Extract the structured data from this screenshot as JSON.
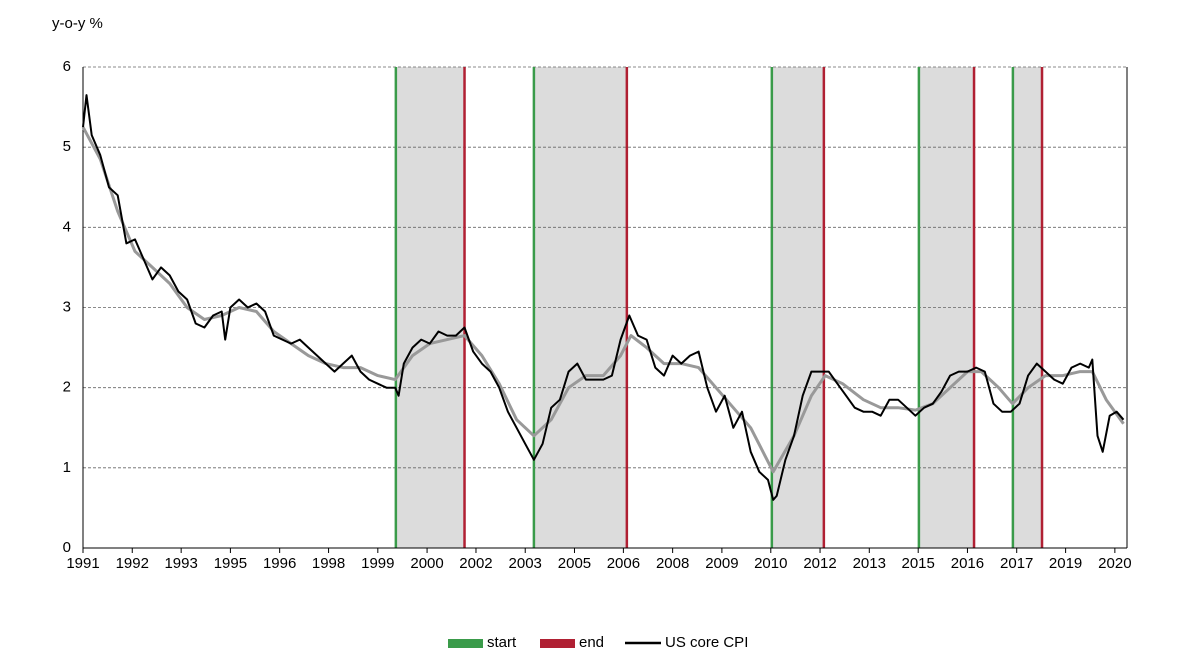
{
  "chart_data": {
    "type": "line",
    "y_axis_label": "y-o-y %",
    "xlim": [
      1991,
      2021.1
    ],
    "xticks": [
      1991,
      {
        "value": 1992.42,
        "label": "1992"
      },
      {
        "value": 1993.83,
        "label": "1993"
      },
      {
        "value": 1995.25,
        "label": "1995"
      },
      {
        "value": 1996.67,
        "label": "1996"
      },
      {
        "value": 1998.08,
        "label": "1998"
      },
      {
        "value": 1999.5,
        "label": "1999"
      },
      {
        "value": 2000.92,
        "label": "2000"
      },
      {
        "value": 2002.33,
        "label": "2002"
      },
      {
        "value": 2003.75,
        "label": "2003"
      },
      {
        "value": 2005.17,
        "label": "2005"
      },
      {
        "value": 2006.58,
        "label": "2006"
      },
      2008,
      {
        "value": 2009.42,
        "label": "2009"
      },
      {
        "value": 2010.83,
        "label": "2010"
      },
      {
        "value": 2012.25,
        "label": "2012"
      },
      {
        "value": 2013.67,
        "label": "2013"
      },
      {
        "value": 2015.08,
        "label": "2015"
      },
      {
        "value": 2016.5,
        "label": "2016"
      },
      {
        "value": 2017.92,
        "label": "2017"
      },
      {
        "value": 2019.33,
        "label": "2019"
      },
      {
        "value": 2020.75,
        "label": "2020"
      }
    ],
    "ylim": [
      0,
      6
    ],
    "yticks": [
      0,
      1,
      2,
      3,
      4,
      5,
      6
    ],
    "grid": true,
    "band_color": "#dcdcdc",
    "start_lines": {
      "name": "start",
      "color": "#3a9b4a",
      "x": [
        2000.02,
        2004.0,
        2010.86,
        2015.1,
        2017.81
      ]
    },
    "end_lines": {
      "name": "end",
      "color": "#b02033",
      "x": [
        2002.0,
        2006.68,
        2012.36,
        2016.69,
        2018.65
      ]
    },
    "series": [
      {
        "color": "#999999",
        "x": [
          1991.0,
          1991.5,
          1992.0,
          1992.5,
          1993.0,
          1993.5,
          1994.0,
          1994.5,
          1995.0,
          1995.5,
          1996.0,
          1996.5,
          1997.0,
          1997.5,
          1998.0,
          1998.5,
          1999.0,
          1999.5,
          2000.0,
          2000.5,
          2001.0,
          2001.5,
          2002.0,
          2002.5,
          2003.0,
          2003.5,
          2004.0,
          2004.5,
          2005.0,
          2005.5,
          2006.0,
          2006.5,
          2006.8,
          2007.25,
          2007.75,
          2008.25,
          2008.75,
          2009.25,
          2009.75,
          2010.25,
          2010.9,
          2011.5,
          2012.0,
          2012.4,
          2012.9,
          2013.5,
          2014.0,
          2014.5,
          2015.0,
          2015.5,
          2016.0,
          2016.5,
          2016.9,
          2017.4,
          2017.8,
          2018.25,
          2018.75,
          2019.25,
          2019.75,
          2020.1,
          2020.5,
          2021.0
        ],
        "values": [
          5.25,
          4.85,
          4.2,
          3.7,
          3.5,
          3.3,
          3.0,
          2.85,
          2.9,
          3.0,
          2.95,
          2.7,
          2.55,
          2.4,
          2.3,
          2.25,
          2.25,
          2.15,
          2.1,
          2.4,
          2.55,
          2.6,
          2.65,
          2.4,
          2.05,
          1.6,
          1.4,
          1.6,
          2.0,
          2.15,
          2.15,
          2.4,
          2.65,
          2.5,
          2.3,
          2.3,
          2.25,
          2.0,
          1.75,
          1.5,
          0.95,
          1.4,
          1.9,
          2.15,
          2.05,
          1.85,
          1.75,
          1.75,
          1.72,
          1.8,
          2.0,
          2.2,
          2.2,
          2.0,
          1.8,
          2.0,
          2.15,
          2.15,
          2.2,
          2.2,
          1.85,
          1.55
        ]
      },
      {
        "name": "US core CPI",
        "color": "#000000",
        "x": [
          1991.0,
          1991.1,
          1991.25,
          1991.5,
          1991.75,
          1992.0,
          1992.25,
          1992.5,
          1992.75,
          1993.0,
          1993.25,
          1993.5,
          1993.75,
          1994.0,
          1994.25,
          1994.5,
          1994.75,
          1995.0,
          1995.1,
          1995.25,
          1995.5,
          1995.75,
          1996.0,
          1996.25,
          1996.5,
          1996.75,
          1997.0,
          1997.25,
          1997.5,
          1997.75,
          1998.0,
          1998.25,
          1998.5,
          1998.75,
          1999.0,
          1999.25,
          1999.5,
          1999.75,
          2000.0,
          2000.1,
          2000.25,
          2000.5,
          2000.75,
          2001.0,
          2001.25,
          2001.5,
          2001.75,
          2002.0,
          2002.25,
          2002.5,
          2002.75,
          2003.0,
          2003.25,
          2003.5,
          2003.75,
          2004.0,
          2004.25,
          2004.5,
          2004.75,
          2005.0,
          2005.25,
          2005.5,
          2005.75,
          2006.0,
          2006.25,
          2006.5,
          2006.75,
          2007.0,
          2007.25,
          2007.5,
          2007.75,
          2008.0,
          2008.25,
          2008.5,
          2008.75,
          2009.0,
          2009.25,
          2009.5,
          2009.75,
          2010.0,
          2010.25,
          2010.5,
          2010.75,
          2010.9,
          2011.0,
          2011.25,
          2011.5,
          2011.75,
          2012.0,
          2012.25,
          2012.5,
          2012.75,
          2013.0,
          2013.25,
          2013.5,
          2013.75,
          2014.0,
          2014.25,
          2014.5,
          2014.75,
          2015.0,
          2015.25,
          2015.5,
          2015.75,
          2016.0,
          2016.25,
          2016.5,
          2016.75,
          2017.0,
          2017.25,
          2017.5,
          2017.75,
          2018.0,
          2018.25,
          2018.5,
          2018.75,
          2019.0,
          2019.25,
          2019.5,
          2019.75,
          2020.0,
          2020.1,
          2020.25,
          2020.4,
          2020.6,
          2020.8,
          2021.0
        ],
        "values": [
          5.25,
          5.65,
          5.15,
          4.9,
          4.5,
          4.4,
          3.8,
          3.85,
          3.6,
          3.35,
          3.5,
          3.4,
          3.2,
          3.1,
          2.8,
          2.75,
          2.9,
          2.95,
          2.6,
          3.0,
          3.1,
          3.0,
          3.05,
          2.95,
          2.65,
          2.6,
          2.55,
          2.6,
          2.5,
          2.4,
          2.3,
          2.2,
          2.3,
          2.4,
          2.2,
          2.1,
          2.05,
          2.0,
          2.0,
          1.9,
          2.3,
          2.5,
          2.6,
          2.55,
          2.7,
          2.65,
          2.65,
          2.75,
          2.45,
          2.3,
          2.2,
          2.0,
          1.7,
          1.5,
          1.3,
          1.1,
          1.3,
          1.75,
          1.85,
          2.2,
          2.3,
          2.1,
          2.1,
          2.1,
          2.15,
          2.6,
          2.9,
          2.65,
          2.6,
          2.25,
          2.15,
          2.4,
          2.3,
          2.4,
          2.45,
          2.0,
          1.7,
          1.9,
          1.5,
          1.7,
          1.2,
          0.95,
          0.85,
          0.6,
          0.65,
          1.1,
          1.4,
          1.9,
          2.2,
          2.2,
          2.2,
          2.05,
          1.9,
          1.75,
          1.7,
          1.7,
          1.65,
          1.85,
          1.85,
          1.75,
          1.65,
          1.75,
          1.8,
          1.95,
          2.15,
          2.2,
          2.2,
          2.25,
          2.2,
          1.8,
          1.7,
          1.7,
          1.8,
          2.15,
          2.3,
          2.2,
          2.1,
          2.05,
          2.25,
          2.3,
          2.25,
          2.35,
          1.4,
          1.2,
          1.65,
          1.7,
          1.6
        ]
      }
    ]
  }
}
